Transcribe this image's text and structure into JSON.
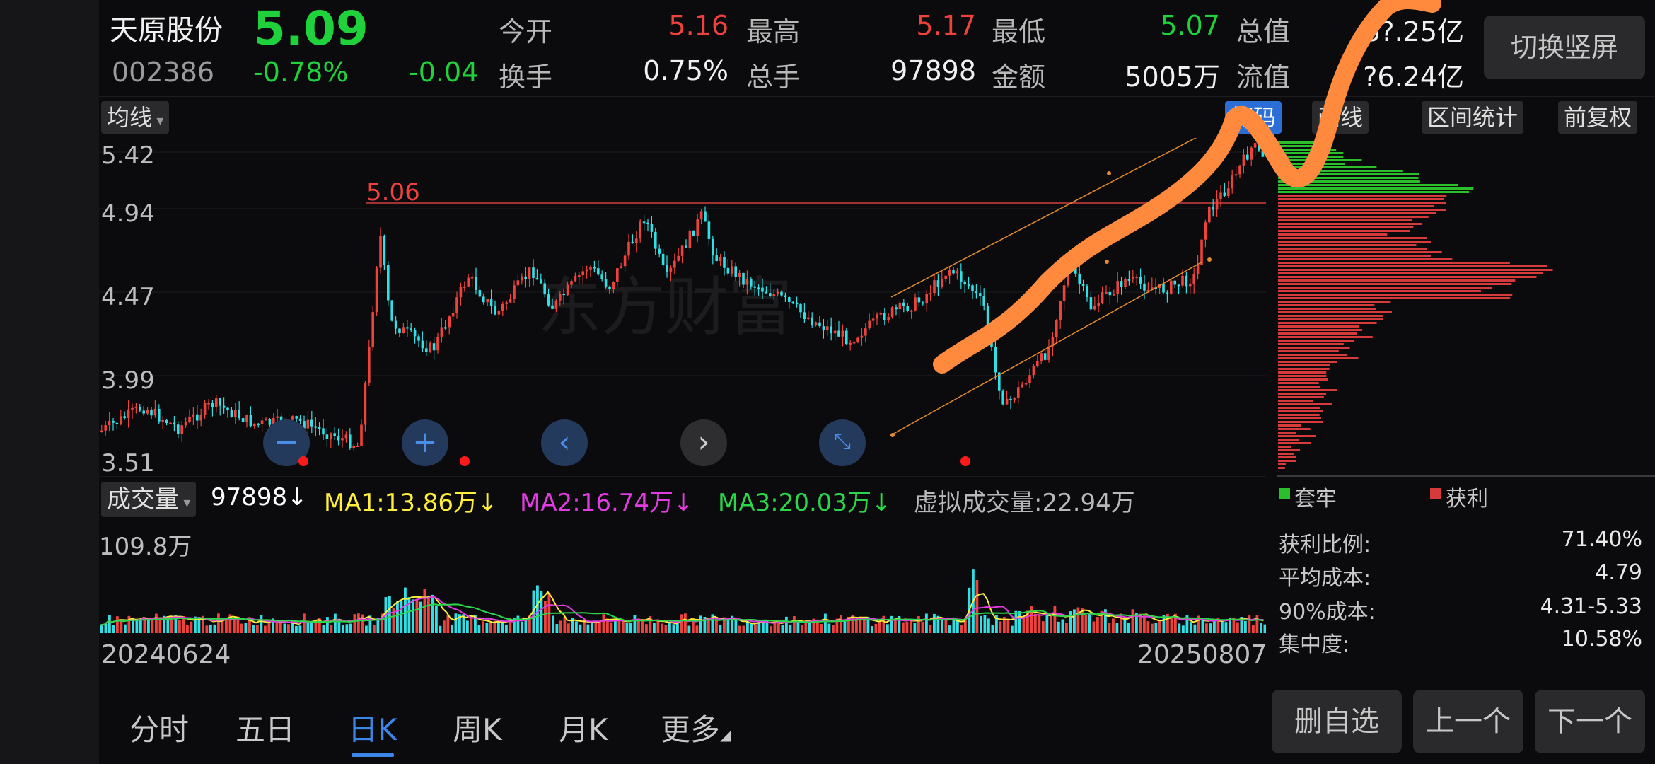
{
  "stock": {
    "name": "天原股份",
    "price": "5.09",
    "code": "002386",
    "change_pct": "-0.78%",
    "change": "-0.04"
  },
  "quote": {
    "open_label": "今开",
    "open": "5.16",
    "high_label": "最高",
    "high": "5.17",
    "low_label": "最低",
    "low": "5.07",
    "total_label": "总值",
    "total": "6?.25亿",
    "turnover_label": "换手",
    "turnover": "0.75%",
    "volume_label": "总手",
    "volume": "97898",
    "amount_label": "金额",
    "amount": "5005万",
    "float_label": "流值",
    "float": "?6.24亿"
  },
  "toolbar": {
    "switch_portrait": "切换竖屏",
    "ma_dropdown": "均线",
    "chips": "筹码",
    "draw_line": "画线",
    "range_stats": "区间统计",
    "forward_adjust": "前复权"
  },
  "price_axis": {
    "labels": [
      "5.42",
      "4.94",
      "4.47",
      "3.99",
      "3.51"
    ],
    "high_marker": "5.06"
  },
  "volume_bar": {
    "dropdown": "成交量",
    "current": "97898↓",
    "ma1": "MA1:13.86万↓",
    "ma2": "MA2:16.74万↓",
    "ma3": "MA3:20.03万↓",
    "virtual": "虚拟成交量:22.94万",
    "max_label": "109.8万"
  },
  "dates": {
    "start": "20240624",
    "end": "20250807"
  },
  "chip_legend": {
    "trapped": "套牢",
    "profit": "获利"
  },
  "chip_stats": [
    {
      "label": "获利比例:",
      "value": "71.40%"
    },
    {
      "label": "平均成本:",
      "value": "4.79"
    },
    {
      "label": "90%成本:",
      "value": "4.31-5.33"
    },
    {
      "label": "集中度:",
      "value": "10.58%"
    }
  ],
  "tabs": [
    "分时",
    "五日",
    "日K",
    "周K",
    "月K",
    "更多"
  ],
  "active_tab": "日K",
  "nav_buttons": {
    "remove": "删自选",
    "prev": "上一个",
    "next": "下一个"
  },
  "colors": {
    "up": "#f0423c",
    "down": "#2fe0e6",
    "accent": "#2b6fd6",
    "annotation": "#ff8a3d",
    "ma1": "#ffef3a",
    "ma2": "#e03ce0",
    "ma3": "#2bd64a"
  },
  "watermark": "东方财富",
  "chart_data": {
    "type": "candlestick",
    "y_axis_ticks": [
      5.42,
      4.94,
      4.47,
      3.99,
      3.51
    ],
    "marked_high": 5.06,
    "last_close": 5.09,
    "period": [
      "20240624",
      "20250807"
    ]
  }
}
